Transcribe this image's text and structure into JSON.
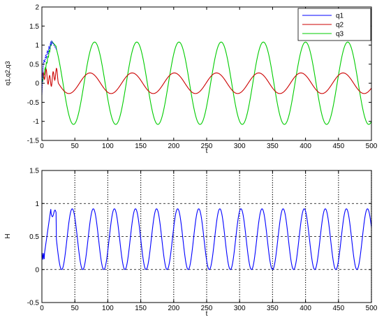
{
  "chart_data": [
    {
      "type": "line",
      "xlabel": "t",
      "ylabel": "q1,q2,q3",
      "xlim": [
        0,
        500
      ],
      "ylim": [
        -1.5,
        2
      ],
      "xticks": [
        "0",
        "50",
        "100",
        "150",
        "200",
        "250",
        "300",
        "350",
        "400",
        "450",
        "500"
      ],
      "yticks": [
        "-1.5",
        "-1",
        "-0.5",
        "0",
        "0.5",
        "1",
        "1.5",
        "2"
      ],
      "legend_position": "top-right",
      "series": [
        {
          "name": "q1",
          "color": "#0000ff",
          "description_values": {
            "transient_peak": 1.1,
            "transient_time": [
              0,
              22
            ]
          }
        },
        {
          "name": "q2",
          "color": "#cc0000",
          "amplitude": 0.27,
          "period": 64,
          "steady_state": "sinusoid"
        },
        {
          "name": "q3",
          "color": "#00cc00",
          "amplitude": 1.08,
          "period": 64,
          "steady_state": "sinusoid"
        }
      ]
    },
    {
      "type": "line",
      "xlabel": "t",
      "ylabel": "H",
      "xlim": [
        0,
        500
      ],
      "ylim": [
        -0.5,
        1.5
      ],
      "xticks": [
        "0",
        "50",
        "100",
        "150",
        "200",
        "250",
        "300",
        "350",
        "400",
        "450",
        "500"
      ],
      "yticks": [
        "-0.5",
        "0",
        "0.5",
        "1",
        "1.5"
      ],
      "dashed_hlines": [
        0,
        0.5,
        1
      ],
      "dotted_vlines": [
        50,
        100,
        150,
        200,
        250,
        300,
        350,
        400,
        450,
        500
      ],
      "series": [
        {
          "name": "",
          "color": "#0000ff",
          "min": 0.0,
          "max": 0.92,
          "period": 32
        }
      ]
    }
  ]
}
